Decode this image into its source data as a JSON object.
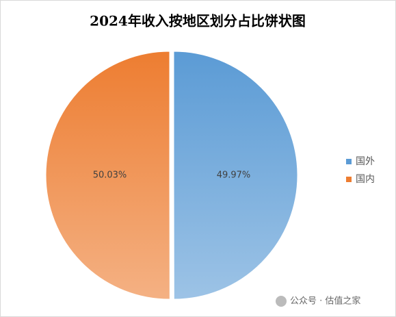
{
  "chart_data": {
    "type": "pie",
    "title": "2024年收入按地区划分占比饼状图",
    "categories": [
      "国外",
      "国内"
    ],
    "values": [
      49.97,
      50.03
    ],
    "value_labels": [
      "49.97%",
      "50.03%"
    ],
    "colors": [
      "#5b9bd5",
      "#ed7d31"
    ],
    "legend": "right"
  },
  "watermark": "公众号 · 估值之家"
}
